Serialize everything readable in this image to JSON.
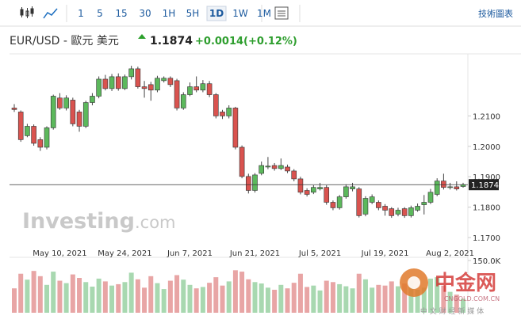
{
  "toolbar": {
    "intervals": [
      "1",
      "5",
      "15",
      "30",
      "1H",
      "5H",
      "1D",
      "1W",
      "1M"
    ],
    "selected": "1D",
    "chart_link": "技術圖表"
  },
  "header": {
    "symbol": "EUR/USD - 歐元 美元",
    "price": 1.1874,
    "change": "+0.0014",
    "change_pct": "(+0.12%)"
  },
  "watermark": {
    "brand": "Investing",
    "domain": ".com",
    "logo": "中金网",
    "logo_url": "CNGOLD.COM.CN",
    "logo_tagline": "中 文 财 经 新 媒 体"
  },
  "chart_data": {
    "type": "candlestick",
    "categories": [
      null,
      null,
      null,
      null,
      null,
      null,
      null,
      "May 10, 2021",
      null,
      null,
      null,
      null,
      null,
      null,
      null,
      null,
      null,
      "May 24, 2021",
      null,
      null,
      null,
      null,
      null,
      null,
      null,
      null,
      null,
      "Jun 7, 2021",
      null,
      null,
      null,
      null,
      null,
      null,
      null,
      null,
      null,
      "Jun 21, 2021",
      null,
      null,
      null,
      null,
      null,
      null,
      null,
      null,
      null,
      "Jul 5, 2021",
      null,
      null,
      null,
      null,
      null,
      null,
      null,
      null,
      null,
      "Jul 19, 2021",
      null,
      null,
      null,
      null,
      null,
      null,
      null,
      null,
      null,
      "Aug 2, 2021",
      null,
      null
    ],
    "open": [
      1.2126,
      1.2113,
      1.2035,
      1.2066,
      1.2022,
      1.1997,
      1.2061,
      1.2159,
      1.2126,
      1.2152,
      1.2113,
      1.2066,
      1.2144,
      1.2165,
      1.2221,
      1.219,
      1.2229,
      1.219,
      1.2229,
      1.2255,
      1.2196,
      1.2203,
      1.2185,
      1.2216,
      1.2224,
      1.2216,
      1.2126,
      1.217,
      1.2196,
      1.2185,
      1.2206,
      1.217,
      1.2113,
      1.21,
      1.2126,
      1.1997,
      1.1901,
      1.1855,
      1.1911,
      1.1932,
      1.1937,
      1.1927,
      1.1932,
      1.1919,
      1.1893,
      1.1855,
      1.1849,
      1.186,
      1.1865,
      1.1816,
      1.1798,
      1.1834,
      1.186,
      1.186,
      1.1777,
      1.1816,
      1.1816,
      1.1803,
      1.1795,
      1.1777,
      1.1795,
      1.1772,
      1.179,
      1.1808,
      1.1816,
      1.1842,
      1.1886,
      1.1865,
      1.1867,
      1.1868
    ],
    "high": [
      1.2139,
      1.2118,
      1.2074,
      1.2072,
      1.203,
      1.2066,
      1.217,
      1.2175,
      1.2168,
      1.216,
      1.212,
      1.215,
      1.2175,
      1.223,
      1.2235,
      1.2238,
      1.224,
      1.2236,
      1.2265,
      1.2262,
      1.2215,
      1.2212,
      1.2232,
      1.223,
      1.223,
      1.2222,
      1.2178,
      1.221,
      1.223,
      1.2218,
      1.2215,
      1.2175,
      1.212,
      1.2135,
      1.213,
      1.2003,
      1.191,
      1.1912,
      1.195,
      1.1965,
      1.1945,
      1.196,
      1.194,
      1.1925,
      1.19,
      1.1862,
      1.1872,
      1.188,
      1.1872,
      1.1822,
      1.184,
      1.1875,
      1.188,
      1.1866,
      1.1836,
      1.1842,
      1.1822,
      1.181,
      1.18,
      1.1798,
      1.18,
      1.1805,
      1.1812,
      1.184,
      1.186,
      1.1895,
      1.191,
      1.188,
      1.1885,
      1.188
    ],
    "low": [
      1.2113,
      1.2015,
      1.203,
      1.2002,
      1.1985,
      1.199,
      1.2055,
      1.212,
      1.2118,
      1.2066,
      1.2048,
      1.206,
      1.2135,
      1.2158,
      1.2184,
      1.2182,
      1.2183,
      1.2185,
      1.222,
      1.219,
      1.216,
      1.215,
      1.2178,
      1.221,
      1.2195,
      1.2118,
      1.212,
      1.2165,
      1.2178,
      1.2178,
      1.2162,
      1.2092,
      1.209,
      1.2092,
      1.199,
      1.1895,
      1.1845,
      1.1848,
      1.1905,
      1.1925,
      1.192,
      1.1922,
      1.1912,
      1.1885,
      1.1842,
      1.1835,
      1.1843,
      1.1855,
      1.1808,
      1.179,
      1.1792,
      1.1828,
      1.1852,
      1.1766,
      1.177,
      1.181,
      1.179,
      1.1772,
      1.1765,
      1.177,
      1.1765,
      1.1766,
      1.1785,
      1.1776,
      1.181,
      1.1836,
      1.1858,
      1.1858,
      1.1855,
      1.1864
    ],
    "close": [
      1.2121,
      1.2022,
      1.2066,
      1.201,
      1.1997,
      1.2061,
      1.2165,
      1.2126,
      1.2159,
      1.2074,
      1.2066,
      1.2144,
      1.2165,
      1.2221,
      1.219,
      1.2229,
      1.219,
      1.2229,
      1.2255,
      1.2196,
      1.219,
      1.2185,
      1.2224,
      1.2224,
      1.2203,
      1.2126,
      1.217,
      1.2196,
      1.2185,
      1.2206,
      1.217,
      1.21,
      1.21,
      1.2126,
      1.1997,
      1.1901,
      1.1855,
      1.1906,
      1.1937,
      1.1935,
      1.1927,
      1.1937,
      1.1919,
      1.1893,
      1.1849,
      1.1842,
      1.1865,
      1.1865,
      1.1816,
      1.1798,
      1.1834,
      1.1867,
      1.1867,
      1.1772,
      1.1829,
      1.1834,
      1.1798,
      1.179,
      1.1772,
      1.179,
      1.1772,
      1.1798,
      1.1803,
      1.1816,
      1.1849,
      1.1886,
      1.1865,
      1.1867,
      1.186,
      1.1874
    ],
    "volume": [
      70000,
      112000,
      95000,
      120000,
      105000,
      80000,
      118000,
      92000,
      85000,
      110000,
      100000,
      88000,
      75000,
      98000,
      90000,
      78000,
      82000,
      88000,
      115000,
      96000,
      72000,
      105000,
      85000,
      68000,
      92000,
      108000,
      95000,
      80000,
      70000,
      74000,
      86000,
      102000,
      78000,
      90000,
      122000,
      118000,
      96000,
      88000,
      84000,
      72000,
      66000,
      80000,
      70000,
      86000,
      112000,
      74000,
      78000,
      64000,
      92000,
      88000,
      82000,
      76000,
      70000,
      112000,
      96000,
      72000,
      80000,
      78000,
      90000,
      76000,
      84000,
      92000,
      66000,
      72000,
      98000,
      102000,
      78000,
      60000,
      52000,
      40000
    ],
    "up_color": "#5cb85c",
    "down_color": "#d9534f",
    "up_volume_color": "#a8d8b0",
    "down_volume_color": "#e8a5a5",
    "ylim": [
      1.1635,
      1.2299
    ],
    "yticks": [
      {
        "value": 1.21,
        "label": "1.2100"
      },
      {
        "value": 1.2,
        "label": "1.2000"
      },
      {
        "value": 1.19,
        "label": "1.1900"
      },
      {
        "value": 1.18,
        "label": "1.1800"
      },
      {
        "value": 1.17,
        "label": "1.1700"
      }
    ],
    "y2lim": [
      0,
      150000
    ],
    "y2ticks": [
      {
        "value": 150000,
        "label": "150.0K"
      }
    ]
  }
}
